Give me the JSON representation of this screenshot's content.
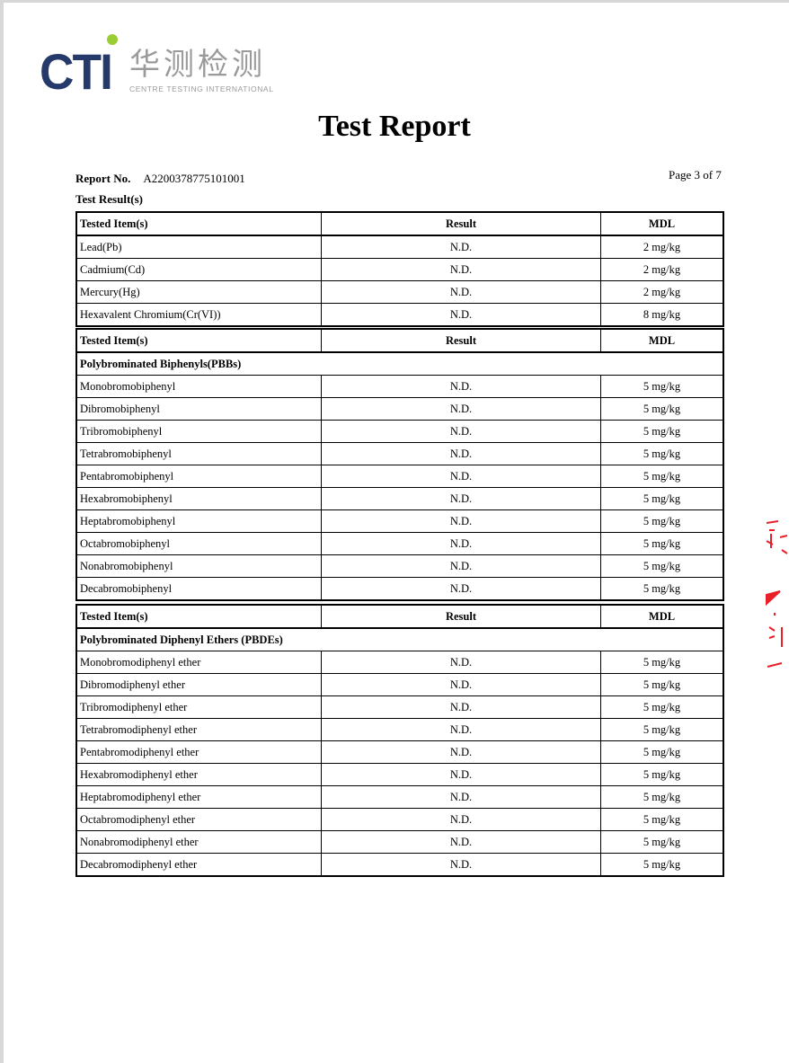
{
  "logo": {
    "brand": "CTI",
    "chinese": "华测检测",
    "english": "CENTRE TESTING INTERNATIONAL",
    "accent_color": "#9acd32",
    "brand_color": "#253a6b"
  },
  "title": "Test Report",
  "report_no_label": "Report No.",
  "report_no": "A2200378775101001",
  "page": "Page 3 of 7",
  "section_title": "Test Result(s)",
  "headers": {
    "item": "Tested Item(s)",
    "result": "Result",
    "mdl": "MDL"
  },
  "tables": [
    {
      "subtitle": null,
      "rows": [
        {
          "item": "Lead(Pb)",
          "result": "N.D.",
          "mdl": "2 mg/kg"
        },
        {
          "item": "Cadmium(Cd)",
          "result": "N.D.",
          "mdl": "2 mg/kg"
        },
        {
          "item": "Mercury(Hg)",
          "result": "N.D.",
          "mdl": "2 mg/kg"
        },
        {
          "item": "Hexavalent Chromium(Cr(VI))",
          "result": "N.D.",
          "mdl": "8 mg/kg"
        }
      ]
    },
    {
      "subtitle": "Polybrominated Biphenyls(PBBs)",
      "rows": [
        {
          "item": "Monobromobiphenyl",
          "result": "N.D.",
          "mdl": "5 mg/kg"
        },
        {
          "item": "Dibromobiphenyl",
          "result": "N.D.",
          "mdl": "5 mg/kg"
        },
        {
          "item": "Tribromobiphenyl",
          "result": "N.D.",
          "mdl": "5 mg/kg"
        },
        {
          "item": "Tetrabromobiphenyl",
          "result": "N.D.",
          "mdl": "5 mg/kg"
        },
        {
          "item": "Pentabromobiphenyl",
          "result": "N.D.",
          "mdl": "5 mg/kg"
        },
        {
          "item": "Hexabromobiphenyl",
          "result": "N.D.",
          "mdl": "5 mg/kg"
        },
        {
          "item": "Heptabromobiphenyl",
          "result": "N.D.",
          "mdl": "5 mg/kg"
        },
        {
          "item": "Octabromobiphenyl",
          "result": "N.D.",
          "mdl": "5 mg/kg"
        },
        {
          "item": "Nonabromobiphenyl",
          "result": "N.D.",
          "mdl": "5 mg/kg"
        },
        {
          "item": "Decabromobiphenyl",
          "result": "N.D.",
          "mdl": "5 mg/kg"
        }
      ]
    },
    {
      "subtitle": "Polybrominated Diphenyl Ethers (PBDEs)",
      "rows": [
        {
          "item": "Monobromodiphenyl ether",
          "result": "N.D.",
          "mdl": "5 mg/kg"
        },
        {
          "item": "Dibromodiphenyl ether",
          "result": "N.D.",
          "mdl": "5 mg/kg"
        },
        {
          "item": "Tribromodiphenyl ether",
          "result": "N.D.",
          "mdl": "5 mg/kg"
        },
        {
          "item": "Tetrabromodiphenyl ether",
          "result": "N.D.",
          "mdl": "5 mg/kg"
        },
        {
          "item": "Pentabromodiphenyl ether",
          "result": "N.D.",
          "mdl": "5 mg/kg"
        },
        {
          "item": "Hexabromodiphenyl ether",
          "result": "N.D.",
          "mdl": "5 mg/kg"
        },
        {
          "item": "Heptabromodiphenyl ether",
          "result": "N.D.",
          "mdl": "5 mg/kg"
        },
        {
          "item": "Octabromodiphenyl ether",
          "result": "N.D.",
          "mdl": "5 mg/kg"
        },
        {
          "item": "Nonabromodiphenyl ether",
          "result": "N.D.",
          "mdl": "5 mg/kg"
        },
        {
          "item": "Decabromodiphenyl ether",
          "result": "N.D.",
          "mdl": "5 mg/kg"
        }
      ]
    }
  ],
  "stamp_color": "#e8202a"
}
